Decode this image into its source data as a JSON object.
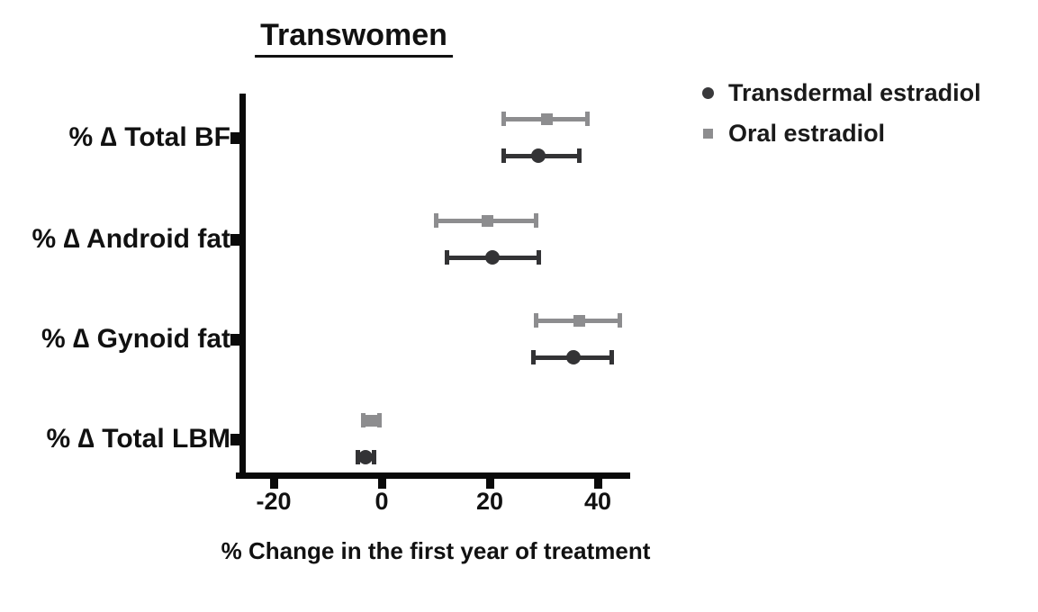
{
  "title": "Transwomen",
  "legend": {
    "items": [
      {
        "label": "Transdermal estradiol",
        "marker": "circle",
        "color": "#39393b"
      },
      {
        "label": "Oral estradiol",
        "marker": "square",
        "color": "#8d8d8f"
      }
    ]
  },
  "chart_data": {
    "type": "scatter",
    "subtype": "horizontal-point-estimates-with-error-bars",
    "title": "Transwomen",
    "xlabel": "% Change in the first year of treatment",
    "xlim": [
      -27,
      46
    ],
    "xticks": [
      -20,
      0,
      20,
      40
    ],
    "grid": false,
    "legend_position": "top-right",
    "categories": [
      "% ∆ Total BF",
      "% ∆ Android fat",
      "% ∆ Gynoid fat",
      "% ∆ Total LBM"
    ],
    "series": [
      {
        "name": "Transdermal estradiol",
        "marker": "circle",
        "color": "#333335",
        "values": [
          29,
          20.5,
          35.5,
          -3
        ],
        "ci_low": [
          22.5,
          12,
          28,
          -4.5
        ],
        "ci_high": [
          36.5,
          29,
          42.5,
          -1.5
        ]
      },
      {
        "name": "Oral estradiol",
        "marker": "square",
        "color": "#8d8d8f",
        "values": [
          30.5,
          19.5,
          36.5,
          -2
        ],
        "ci_low": [
          22.5,
          10,
          28.5,
          -3.5
        ],
        "ci_high": [
          38,
          28.5,
          44,
          -0.5
        ]
      }
    ]
  }
}
